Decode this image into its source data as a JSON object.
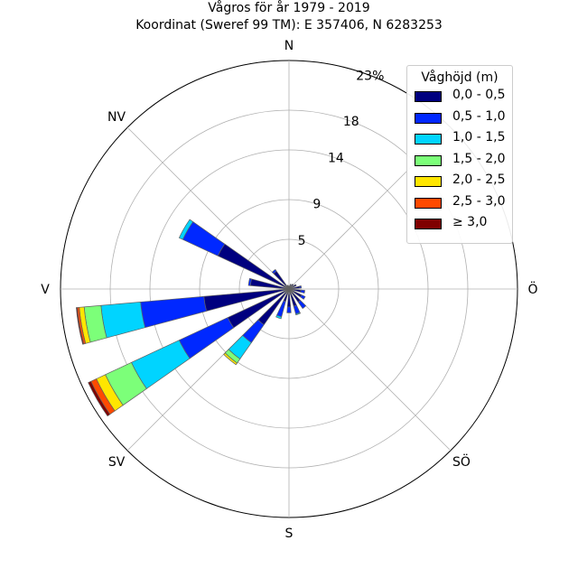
{
  "header": {
    "title_line1": "Vågros för år 1979 - 2019",
    "title_line2": "Koordinat (Sweref 99 TM): E 357406, N 6283253"
  },
  "legend": {
    "title": "Våghöjd (m)",
    "items": [
      {
        "label": "0,0 - 0,5",
        "color": "#00007f"
      },
      {
        "label": "0,5 - 1,0",
        "color": "#0028ff"
      },
      {
        "label": "1,0 - 1,5",
        "color": "#00d4ff"
      },
      {
        "label": "1,5 - 2,0",
        "color": "#7cff79"
      },
      {
        "label": "2,0 - 2,5",
        "color": "#ffe600"
      },
      {
        "label": "2,5 - 3,0",
        "color": "#ff4a00"
      },
      {
        "label": "≥ 3,0",
        "color": "#7f0000"
      }
    ]
  },
  "chart_data": {
    "type": "wind-rose",
    "title": "Vågros för år 1979 - 2019",
    "subtitle": "Koordinat (Sweref 99 TM): E 357406, N 6283253",
    "direction_labels": [
      {
        "label": "N",
        "deg": 0
      },
      {
        "label": "NV",
        "deg": 315
      },
      {
        "label": "V",
        "deg": 270
      },
      {
        "label": "SV",
        "deg": 225
      },
      {
        "label": "S",
        "deg": 180
      },
      {
        "label": "SÖ",
        "deg": 135
      },
      {
        "label": "Ö",
        "deg": 90
      }
    ],
    "radial_ticks": [
      {
        "value": 5,
        "label": "5"
      },
      {
        "value": 9,
        "label": "9"
      },
      {
        "value": 14,
        "label": "14"
      },
      {
        "value": 18,
        "label": "18"
      },
      {
        "value": 23,
        "label": "23%"
      }
    ],
    "rmax": 23,
    "sector_width_deg": 10,
    "bin_labels": [
      "0,0 - 0,5",
      "0,5 - 1,0",
      "1,0 - 1,5",
      "1,5 - 2,0",
      "2,0 - 2,5",
      "2,5 - 3,0",
      "≥ 3,0"
    ],
    "sectors": [
      {
        "direction_deg": 0,
        "cumulative": [
          0.3
        ]
      },
      {
        "direction_deg": 20,
        "cumulative": [
          0.5
        ]
      },
      {
        "direction_deg": 40,
        "cumulative": [
          0.6
        ]
      },
      {
        "direction_deg": 60,
        "cumulative": [
          0.8
        ]
      },
      {
        "direction_deg": 80,
        "cumulative": [
          1.1,
          1.25
        ]
      },
      {
        "direction_deg": 100,
        "cumulative": [
          1.2,
          1.6
        ]
      },
      {
        "direction_deg": 120,
        "cumulative": [
          1.4,
          1.8
        ]
      },
      {
        "direction_deg": 140,
        "cumulative": [
          1.6,
          2.4
        ]
      },
      {
        "direction_deg": 160,
        "cumulative": [
          1.8,
          2.6,
          2.7
        ]
      },
      {
        "direction_deg": 180,
        "cumulative": [
          1.8,
          2.4
        ]
      },
      {
        "direction_deg": 200,
        "cumulative": [
          1.3,
          2.9,
          3.1
        ]
      },
      {
        "direction_deg": 220,
        "cumulative": [
          4.4,
          6.6,
          8.6,
          9.1,
          9.3
        ]
      },
      {
        "direction_deg": 240,
        "cumulative": [
          6.8,
          12.2,
          17.5,
          20.4,
          21.4,
          22.0,
          22.3
        ]
      },
      {
        "direction_deg": 260,
        "cumulative": [
          8.6,
          15.0,
          19.0,
          20.7,
          21.2,
          21.4,
          21.5
        ]
      },
      {
        "direction_deg": 280,
        "cumulative": [
          3.9,
          4.1
        ]
      },
      {
        "direction_deg": 300,
        "cumulative": [
          7.9,
          11.8,
          12.2
        ]
      },
      {
        "direction_deg": 320,
        "cumulative": [
          2.2,
          2.4
        ]
      },
      {
        "direction_deg": 340,
        "cumulative": [
          0.4
        ]
      }
    ]
  }
}
